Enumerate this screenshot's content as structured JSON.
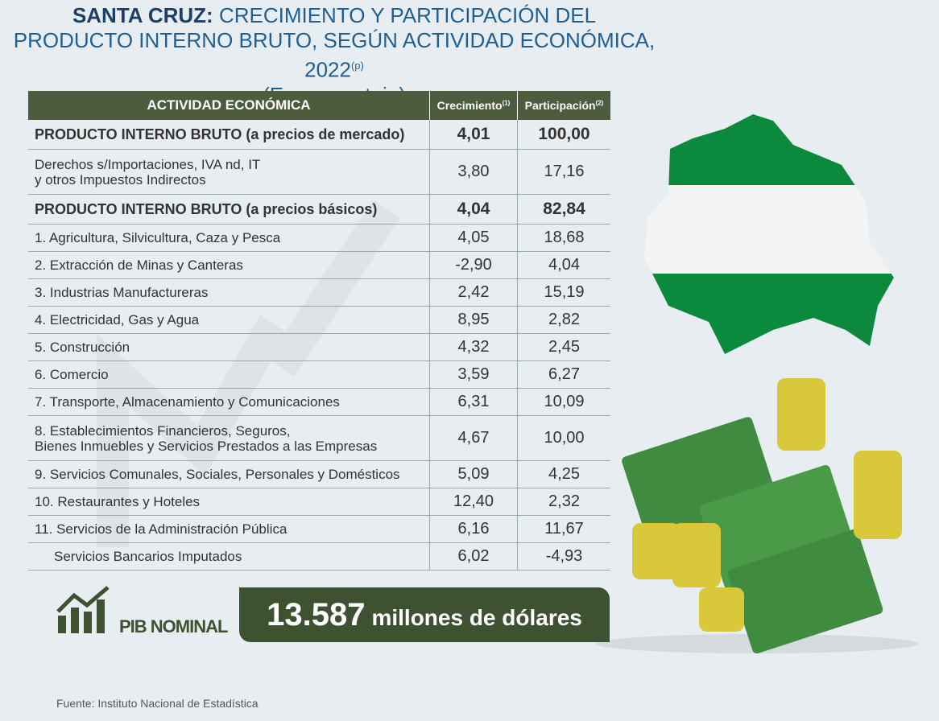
{
  "header": {
    "title_bold": "SANTA CRUZ:",
    "title": "CRECIMIENTO Y PARTICIPACIÓN DEL PRODUCTO INTERNO BRUTO, SEGÚN ACTIVIDAD ECONÓMICA, 2022",
    "title_note": "(p)",
    "subtitle": "(En porcentaje)"
  },
  "table": {
    "columns": [
      {
        "label": "ACTIVIDAD  ECONÓMICA"
      },
      {
        "label": "Crecimiento",
        "note": "(1)"
      },
      {
        "label": "Participación",
        "note": "(2)"
      }
    ],
    "rows": [
      [
        "PRODUCTO INTERNO BRUTO (a precios de mercado)",
        "4,01",
        "100,00"
      ],
      [
        "Derechos s/Importaciones, IVA nd, IT\ny otros Impuestos Indirectos",
        "3,80",
        "17,16"
      ],
      [
        "PRODUCTO INTERNO BRUTO (a precios básicos)",
        "4,04",
        "82,84"
      ],
      [
        "1. Agricultura, Silvicultura, Caza y Pesca",
        "4,05",
        "18,68"
      ],
      [
        "2. Extracción de Minas y Canteras",
        "-2,90",
        "4,04"
      ],
      [
        "3. Industrias Manufactureras",
        "2,42",
        "15,19"
      ],
      [
        "4. Electricidad, Gas y Agua",
        "8,95",
        "2,82"
      ],
      [
        "5. Construcción",
        "4,32",
        "2,45"
      ],
      [
        "6. Comercio",
        "3,59",
        "6,27"
      ],
      [
        "7. Transporte, Almacenamiento y Comunicaciones",
        "6,31",
        "10,09"
      ],
      [
        "8. Establecimientos Financieros, Seguros,\n    Bienes Inmuebles y Servicios Prestados a las Empresas",
        "4,67",
        "10,00"
      ],
      [
        "9. Servicios Comunales, Sociales, Personales y Domésticos",
        "5,09",
        "4,25"
      ],
      [
        "10. Restaurantes y Hoteles",
        "12,40",
        "2,32"
      ],
      [
        "11. Servicios de la Administración Pública",
        "6,16",
        "11,67"
      ],
      [
        "Servicios Bancarios Imputados",
        "6,02",
        "-4,93"
      ]
    ]
  },
  "footer": {
    "pib_label": "PIB NOMINAL",
    "pib_value": "13.587",
    "pib_unit": "millones de dólares",
    "source": "Fuente: Instituto Nacional de Estadística"
  }
}
